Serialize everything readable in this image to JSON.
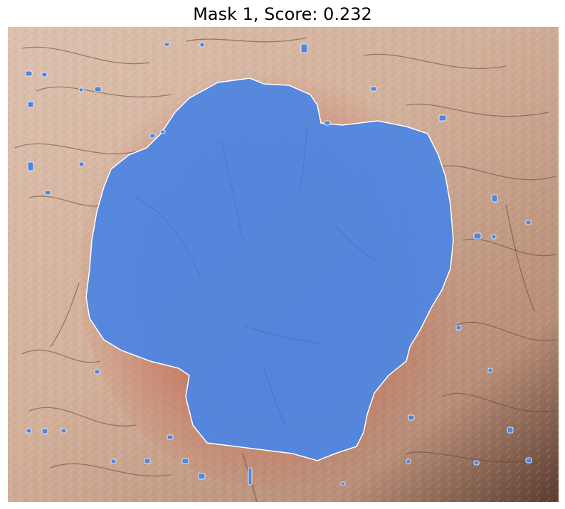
{
  "figure": {
    "title": "Mask 1, Score: 0.232"
  },
  "image": {
    "subject": "skin-lesion-photo",
    "mask_color": "#4f86e0",
    "mask_edge_color": "#ffffff",
    "skin_colors": [
      "#d9b9a6",
      "#c9a18a",
      "#7a5a4a",
      "#c98a72"
    ]
  }
}
